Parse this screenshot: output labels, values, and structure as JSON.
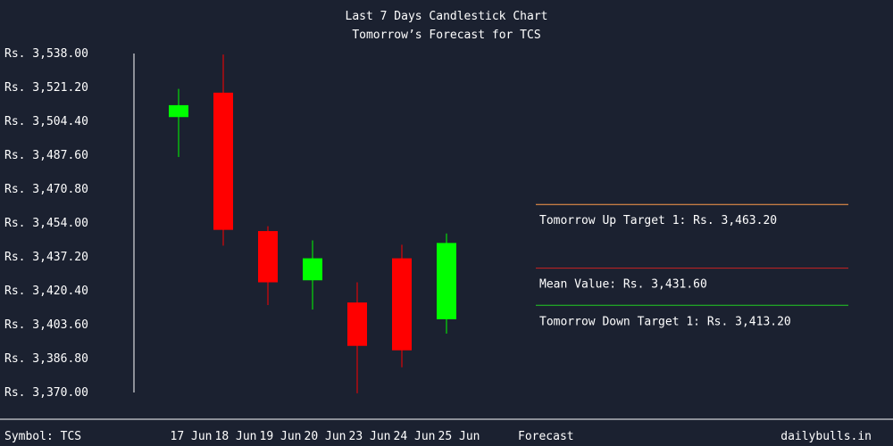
{
  "chart_data": {
    "type": "candlestick",
    "title": "Last 7 Days Candlestick Chart",
    "subtitle": "Tomorrow’s Forecast for TCS",
    "ylim": [
      3370.0,
      3538.0
    ],
    "y_ticks": [
      3538.0,
      3521.2,
      3504.4,
      3487.6,
      3470.8,
      3454.0,
      3437.2,
      3420.4,
      3403.6,
      3386.8,
      3370.0
    ],
    "y_tick_labels": [
      "Rs. 3,538.00",
      "Rs. 3,521.20",
      "Rs. 3,504.40",
      "Rs. 3,487.60",
      "Rs. 3,470.80",
      "Rs. 3,454.00",
      "Rs. 3,437.20",
      "Rs. 3,420.40",
      "Rs. 3,403.60",
      "Rs. 3,386.80",
      "Rs. 3,370.00"
    ],
    "categories": [
      "17 Jun",
      "18 Jun",
      "19 Jun",
      "20 Jun",
      "23 Jun",
      "24 Jun",
      "25 Jun"
    ],
    "candles": [
      {
        "date": "17 Jun",
        "open": 3506.5,
        "close": 3512.4,
        "high": 3520.5,
        "low": 3486.7
      },
      {
        "date": "18 Jun",
        "open": 3518.6,
        "close": 3450.6,
        "high": 3537.5,
        "low": 3442.8
      },
      {
        "date": "19 Jun",
        "open": 3450.0,
        "close": 3424.6,
        "high": 3452.4,
        "low": 3413.3
      },
      {
        "date": "20 Jun",
        "open": 3425.6,
        "close": 3436.5,
        "high": 3445.4,
        "low": 3411.1
      },
      {
        "date": "23 Jun",
        "open": 3414.6,
        "close": 3393.1,
        "high": 3424.6,
        "low": 3369.6
      },
      {
        "date": "24 Jun",
        "open": 3436.5,
        "close": 3390.9,
        "high": 3443.2,
        "low": 3382.5
      },
      {
        "date": "25 Jun",
        "open": 3406.3,
        "close": 3444.1,
        "high": 3448.8,
        "low": 3399.2
      }
    ],
    "forecast": {
      "label": "Forecast",
      "lines": [
        {
          "text": "Tomorrow Up Target 1: Rs. 3,463.20",
          "value": 3463.2,
          "color": "#ff9b4a"
        },
        {
          "text": "Mean Value: Rs. 3,431.60",
          "value": 3431.6,
          "color": "#cc2222"
        },
        {
          "text": "Tomorrow Down Target 1: Rs. 3,413.20",
          "value": 3413.2,
          "color": "#22cc22"
        }
      ]
    },
    "colors": {
      "up": "#00ff00",
      "down": "#ff0000",
      "up_wick": "#00ff00",
      "down_wick": "#ff0000"
    }
  },
  "footer": {
    "symbol": "Symbol: TCS",
    "site": "dailybulls.in"
  }
}
